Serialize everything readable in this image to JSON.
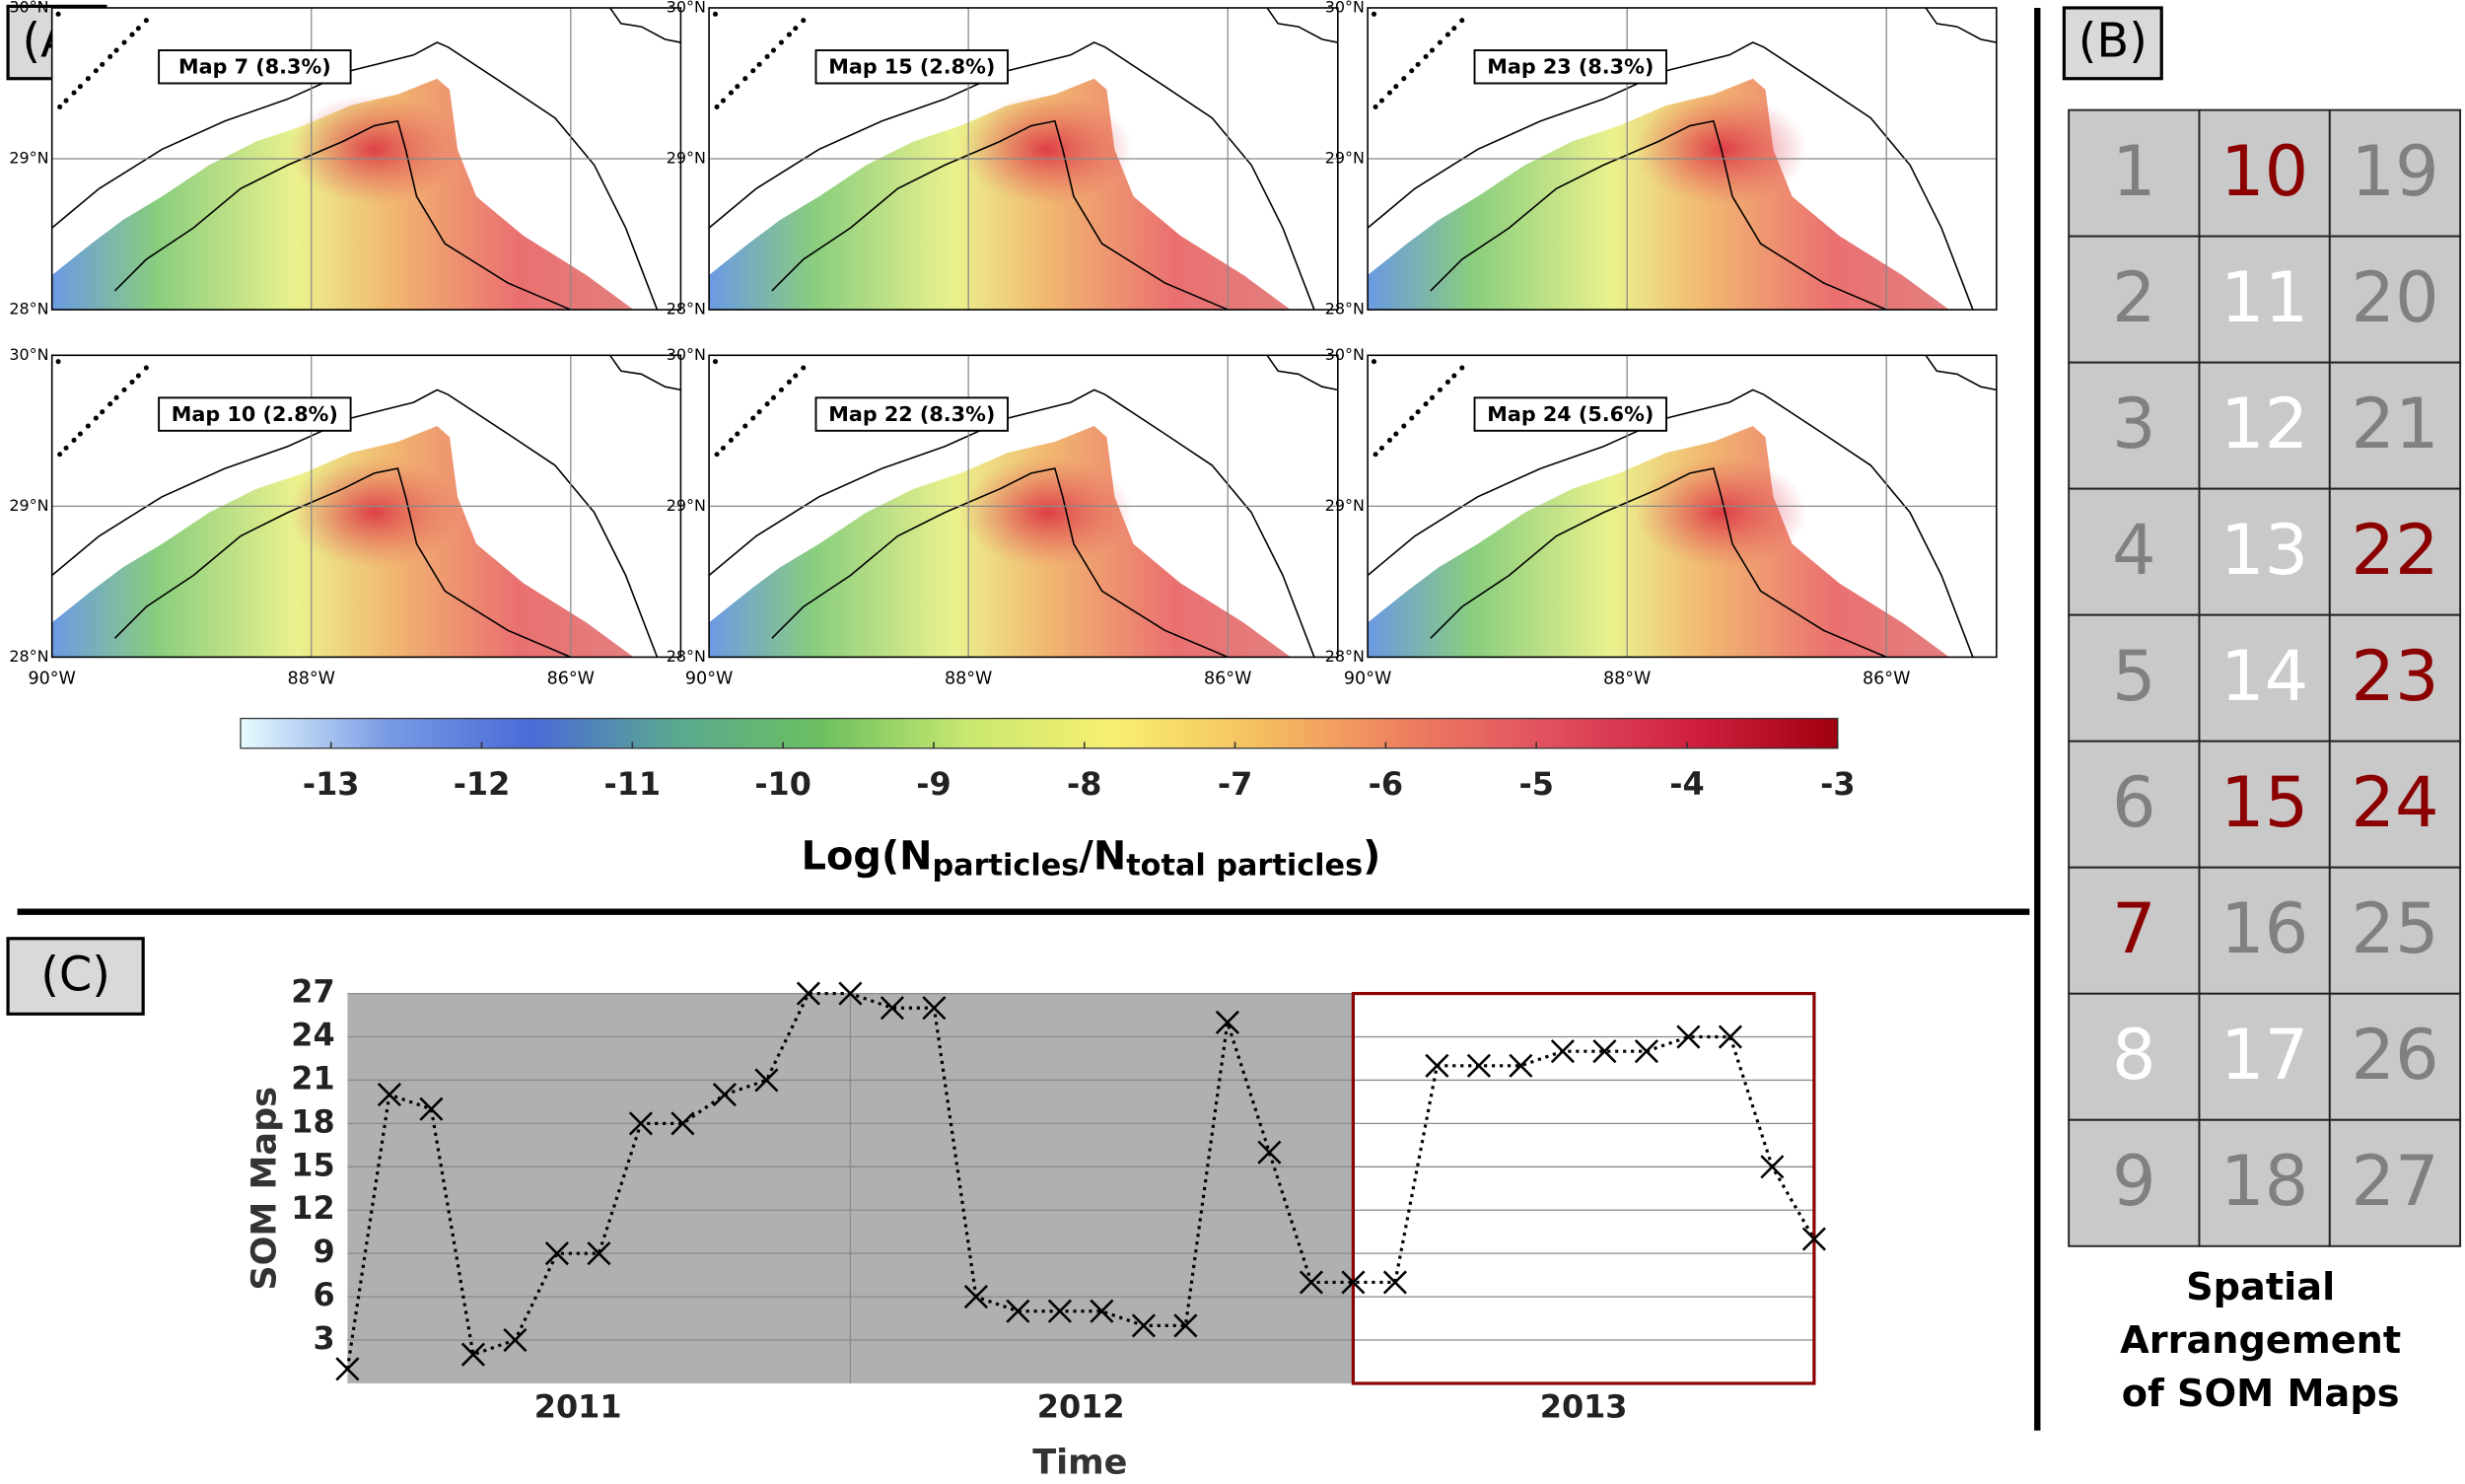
{
  "panel_a": {
    "label": "(A)",
    "maps": [
      {
        "label": "Map 7 (8.3%)"
      },
      {
        "label": "Map 15 (2.8%)"
      },
      {
        "label": "Map 23 (8.3%)"
      },
      {
        "label": "Map 10 (2.8%)"
      },
      {
        "label": "Map 22 (8.3%)"
      },
      {
        "label": "Map 24 (5.6%)"
      }
    ],
    "lat_labels": [
      "30°N",
      "29°N",
      "28°N"
    ],
    "lon_labels": [
      "90°W",
      "88°W",
      "86°W"
    ],
    "colorbar": {
      "lim": [
        -13.6,
        -3
      ],
      "ticks": [
        -13,
        -12,
        -11,
        -10,
        -9,
        -8,
        -7,
        -6,
        -5,
        -4,
        -3
      ],
      "colors": [
        "#e8fbff",
        "#7a9be4",
        "#4a6ad8",
        "#5aa890",
        "#6cc060",
        "#c8e870",
        "#f8f070",
        "#f5c060",
        "#ee8060",
        "#e05060",
        "#d02040",
        "#a00010"
      ],
      "label": {
        "start": "Log(N",
        "sub1": "particles",
        "mid": "/N",
        "sub2": "total particles",
        "end": ")"
      }
    }
  },
  "panel_b": {
    "label": "(B)",
    "rows": 9,
    "cells": [
      {
        "label": "1",
        "color": "#808080"
      },
      {
        "label": "2",
        "color": "#808080"
      },
      {
        "label": "3",
        "color": "#808080"
      },
      {
        "label": "4",
        "color": "#808080"
      },
      {
        "label": "5",
        "color": "#808080"
      },
      {
        "label": "6",
        "color": "#808080"
      },
      {
        "label": "7",
        "color": "#8b0000"
      },
      {
        "label": "8",
        "color": "#ffffff"
      },
      {
        "label": "9",
        "color": "#808080"
      },
      {
        "label": "10",
        "color": "#8b0000"
      },
      {
        "label": "11",
        "color": "#ffffff"
      },
      {
        "label": "12",
        "color": "#ffffff"
      },
      {
        "label": "13",
        "color": "#ffffff"
      },
      {
        "label": "14",
        "color": "#ffffff"
      },
      {
        "label": "15",
        "color": "#8b0000"
      },
      {
        "label": "16",
        "color": "#808080"
      },
      {
        "label": "17",
        "color": "#ffffff"
      },
      {
        "label": "18",
        "color": "#808080"
      },
      {
        "label": "19",
        "color": "#808080"
      },
      {
        "label": "20",
        "color": "#808080"
      },
      {
        "label": "21",
        "color": "#808080"
      },
      {
        "label": "22",
        "color": "#8b0000"
      },
      {
        "label": "23",
        "color": "#8b0000"
      },
      {
        "label": "24",
        "color": "#8b0000"
      },
      {
        "label": "25",
        "color": "#808080"
      },
      {
        "label": "26",
        "color": "#808080"
      },
      {
        "label": "27",
        "color": "#808080"
      }
    ],
    "caption": [
      "Spatial",
      "Arrangement",
      "of SOM Maps"
    ]
  },
  "chart_data": {
    "type": "line",
    "label": "(C)",
    "x_axis_label": "Time",
    "y_axis_label": "SOM Maps",
    "categories": [
      null,
      null,
      null,
      null,
      null,
      null,
      null,
      null,
      null,
      null,
      null,
      null,
      null,
      null,
      null,
      null,
      null,
      null,
      null,
      null,
      null,
      null,
      null,
      null,
      null,
      null,
      null,
      null,
      null,
      null,
      null,
      null,
      null,
      null,
      null,
      null
    ],
    "year_labels": [
      "2011",
      "2012",
      "2013"
    ],
    "values": [
      1,
      20,
      19,
      2,
      3,
      9,
      9,
      18,
      18,
      20,
      21,
      27,
      27,
      26,
      26,
      6,
      5,
      5,
      5,
      4,
      4,
      25,
      16,
      7,
      7,
      7,
      22,
      22,
      22,
      23,
      23,
      23,
      24,
      24,
      15,
      10
    ],
    "ylim": [
      0,
      27
    ],
    "yticks": [
      3,
      6,
      9,
      12,
      15,
      18,
      21,
      24,
      27
    ],
    "grid": true,
    "color": "#000000",
    "background": "#b0b0b0",
    "highlight_color": "#8b0000"
  }
}
